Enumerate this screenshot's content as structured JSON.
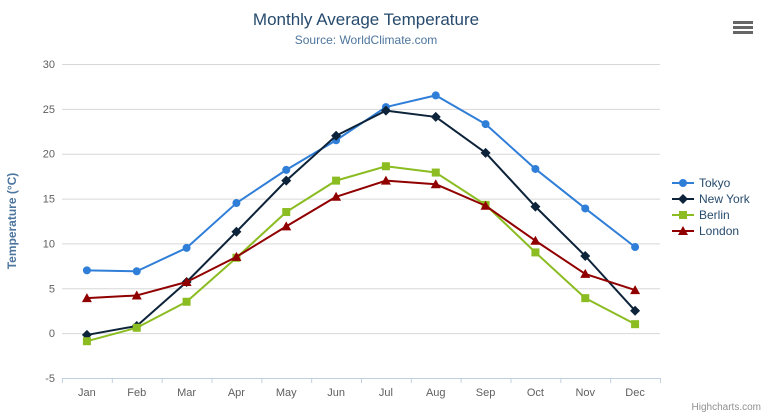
{
  "header": {
    "title": "Monthly Average Temperature",
    "subtitle": "Source: WorldClimate.com"
  },
  "chart_data": {
    "type": "line",
    "title": "Monthly Average Temperature",
    "subtitle": "Source: WorldClimate.com",
    "xlabel": "",
    "ylabel": "Temperature (°C)",
    "categories": [
      "Jan",
      "Feb",
      "Mar",
      "Apr",
      "May",
      "Jun",
      "Jul",
      "Aug",
      "Sep",
      "Oct",
      "Nov",
      "Dec"
    ],
    "series": [
      {
        "name": "Tokyo",
        "color": "#2f7ed8",
        "marker": "circle",
        "values": [
          7.0,
          6.9,
          9.5,
          14.5,
          18.2,
          21.5,
          25.2,
          26.5,
          23.3,
          18.3,
          13.9,
          9.6
        ]
      },
      {
        "name": "New York",
        "color": "#0d233a",
        "marker": "diamond",
        "values": [
          -0.2,
          0.8,
          5.7,
          11.3,
          17.0,
          22.0,
          24.8,
          24.1,
          20.1,
          14.1,
          8.6,
          2.5
        ]
      },
      {
        "name": "Berlin",
        "color": "#8bbc21",
        "marker": "square",
        "values": [
          -0.9,
          0.6,
          3.5,
          8.4,
          13.5,
          17.0,
          18.6,
          17.9,
          14.3,
          9.0,
          3.9,
          1.0
        ]
      },
      {
        "name": "London",
        "color": "#910000",
        "marker": "triangle",
        "values": [
          3.9,
          4.2,
          5.7,
          8.5,
          11.9,
          15.2,
          17.0,
          16.6,
          14.2,
          10.3,
          6.6,
          4.8
        ]
      }
    ],
    "ylim": [
      -5,
      30
    ],
    "ytick_step": 5,
    "yticks": [
      -5,
      0,
      5,
      10,
      15,
      20,
      25,
      30
    ],
    "grid": true,
    "legend_position": "right"
  },
  "styles": {
    "grid_color": "#d8d8d8",
    "axis_line_color": "#c0d0e0",
    "tick_label_color": "#606060",
    "axis_title_color": "#4d759e",
    "title_color": "#274b6d",
    "subtitle_color": "#4d759e"
  },
  "export_menu": {
    "icon": "hamburger-icon"
  },
  "credits": {
    "label": "Highcharts.com"
  }
}
